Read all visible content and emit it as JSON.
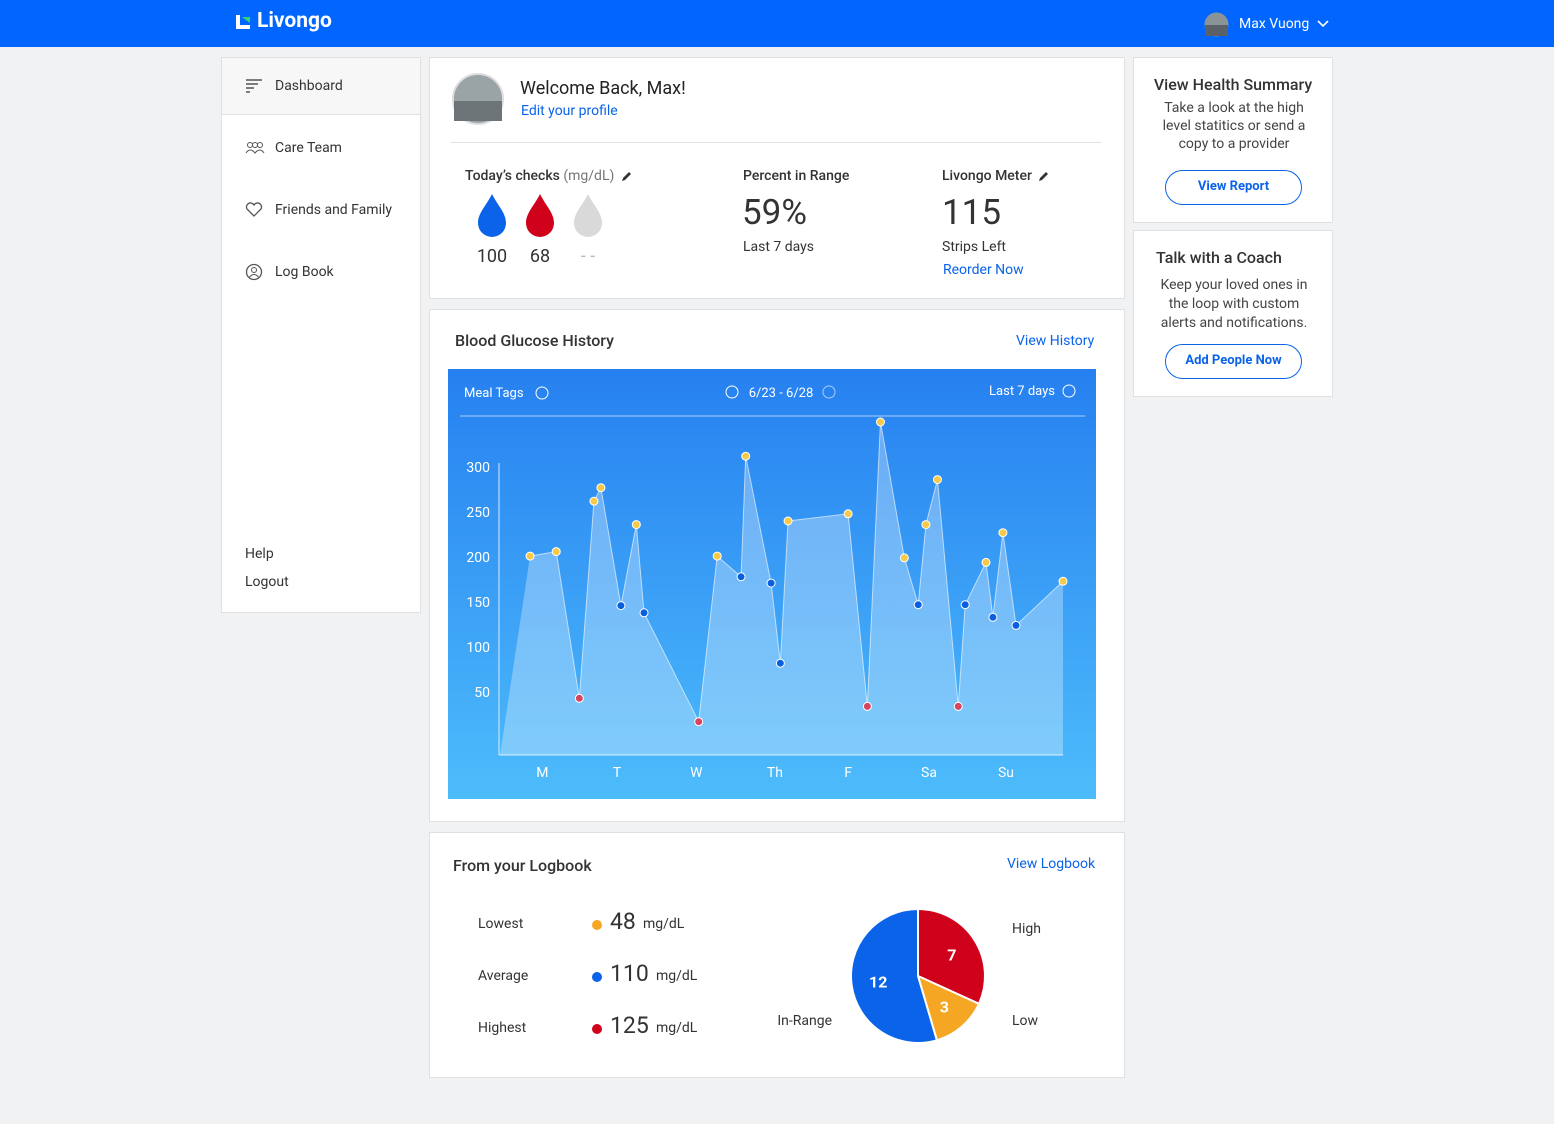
{
  "header": {
    "logo": "Livongo",
    "user": "Max Vuong"
  },
  "nav": {
    "items": [
      "Dashboard",
      "Care Team",
      "Friends and Family",
      "Log Book"
    ],
    "footer": [
      "Help",
      "Logout"
    ]
  },
  "welcome": {
    "title": "Welcome Back, Max!",
    "link": "Edit your profile"
  },
  "checks": {
    "title": "Today’s checks",
    "unit": "(mg/dL)",
    "readings": [
      {
        "value": 100,
        "color": "#0a63e8"
      },
      {
        "value": 68,
        "color": "#d0021b"
      },
      {
        "label": "- -",
        "color": "#d9d9d9"
      }
    ]
  },
  "range": {
    "title": "Percent in Range",
    "value": "59%",
    "caption": "Last 7 days"
  },
  "meter": {
    "title": "Livongo Meter",
    "value": 115,
    "caption": "Strips Left",
    "link": "Reorder Now"
  },
  "glucose_history": {
    "title": "Blood Glucose History",
    "link": "View History",
    "toolbar": {
      "filter": "Meal Tags",
      "range": "6/23 - 6/28",
      "period": "Last 7 days"
    },
    "chart": {
      "type": "area",
      "x": [
        0.39,
        0.73,
        1.03,
        1.22,
        1.31,
        1.57,
        1.77,
        1.87,
        2.58,
        2.82,
        3.13,
        3.19,
        3.52,
        3.64,
        3.74,
        4.52,
        4.77,
        4.94,
        5.25,
        5.43,
        5.53,
        5.68,
        5.95,
        6.04,
        6.31,
        6.4,
        6.53,
        6.7,
        7.31
      ],
      "values": [
        201,
        206,
        43,
        262,
        277,
        146,
        236,
        138,
        17,
        201,
        178,
        312,
        171,
        82,
        240,
        248,
        34,
        350,
        199,
        147,
        236,
        286,
        34,
        147,
        194,
        133,
        227,
        124,
        173
      ],
      "colors": [
        "#f7c948",
        "#f7c948",
        "#d6455d",
        "#f7c948",
        "#f7c948",
        "#0a5ee0",
        "#f7c948",
        "#0a5ee0",
        "#d6455d",
        "#f7c948",
        "#0a5ee0",
        "#f7c948",
        "#0a5ee0",
        "#0a5ee0",
        "#f7c948",
        "#f7c948",
        "#d6455d",
        "#f7c948",
        "#f7c948",
        "#0a5ee0",
        "#f7c948",
        "#f7c948",
        "#d6455d",
        "#0a5ee0",
        "#f7c948",
        "#0a5ee0",
        "#f7c948",
        "#0a5ee0",
        "#f7c948"
      ],
      "xlim": [
        0,
        7.31
      ],
      "ylim": [
        -20,
        350
      ],
      "xticks": [
        {
          "value": 0.55,
          "label": "M"
        },
        {
          "value": 1.52,
          "label": "T"
        },
        {
          "value": 2.55,
          "label": "W"
        },
        {
          "value": 3.57,
          "label": "Th"
        },
        {
          "value": 4.52,
          "label": "F"
        },
        {
          "value": 5.57,
          "label": "Sa"
        },
        {
          "value": 6.57,
          "label": "Su"
        }
      ],
      "yticks": [
        50,
        100,
        150,
        200,
        250,
        300
      ]
    }
  },
  "logbook": {
    "title": "From your Logbook",
    "link": "View Logbook",
    "stats": [
      {
        "label": "Lowest",
        "value": 48,
        "unit": "mg/dL",
        "color": "#f5a623"
      },
      {
        "label": "Average",
        "value": 110,
        "unit": "mg/dL",
        "color": "#0a63e8"
      },
      {
        "label": "Highest",
        "value": 125,
        "unit": "mg/dL",
        "color": "#d0021b"
      }
    ],
    "pie": {
      "type": "pie",
      "slices": [
        {
          "name": "High",
          "value": 7,
          "color": "#d0021b"
        },
        {
          "name": "Low",
          "value": 3,
          "color": "#f5a623"
        },
        {
          "name": "In-Range",
          "value": 12,
          "color": "#0a63e8"
        }
      ]
    }
  },
  "summary": {
    "title": "View Health Summary",
    "text": "Take a look at the high level statitics or send a copy to a provider",
    "button": "View Report"
  },
  "coach": {
    "title": "Talk with a Coach",
    "text": "Keep your loved ones in the loop with custom alerts and notifications.",
    "button": "Add People Now"
  }
}
